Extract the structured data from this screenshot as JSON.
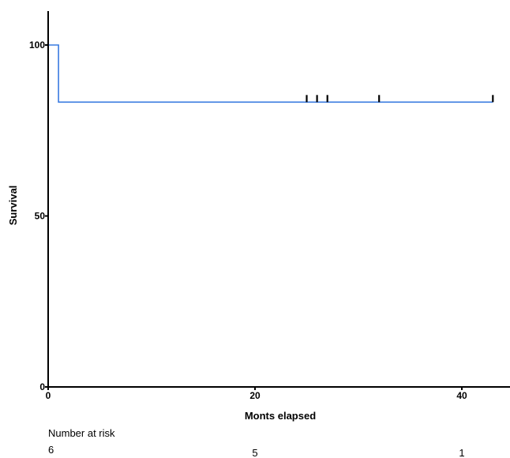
{
  "chart_data": {
    "type": "line",
    "title": "",
    "xlabel": "Monts elapsed",
    "ylabel": "Survival",
    "xlim": [
      0,
      44
    ],
    "ylim": [
      0,
      100
    ],
    "x_ticks": [
      {
        "value": 0,
        "label": "0"
      },
      {
        "value": 20,
        "label": "20"
      },
      {
        "value": 40,
        "label": "40"
      }
    ],
    "y_ticks": [
      {
        "value": 0,
        "label": "0"
      },
      {
        "value": 50,
        "label": "50"
      },
      {
        "value": 100,
        "label": "100"
      }
    ],
    "series": [
      {
        "color": "#3a7be0",
        "step_points": [
          {
            "x": 0,
            "y": 100
          },
          {
            "x": 1,
            "y": 83.3
          },
          {
            "x": 43,
            "y": 83.3
          }
        ],
        "censor_marks": [
          {
            "x": 25,
            "y": 83.3
          },
          {
            "x": 26,
            "y": 83.3
          },
          {
            "x": 27,
            "y": 83.3
          },
          {
            "x": 32,
            "y": 83.3
          },
          {
            "x": 43,
            "y": 83.3
          }
        ]
      }
    ],
    "grid": false
  },
  "risk_table": {
    "title": "Number at risk",
    "entries": [
      {
        "x": 0,
        "count": "6"
      },
      {
        "x": 20,
        "count": "5"
      },
      {
        "x": 40,
        "count": "1"
      }
    ]
  }
}
